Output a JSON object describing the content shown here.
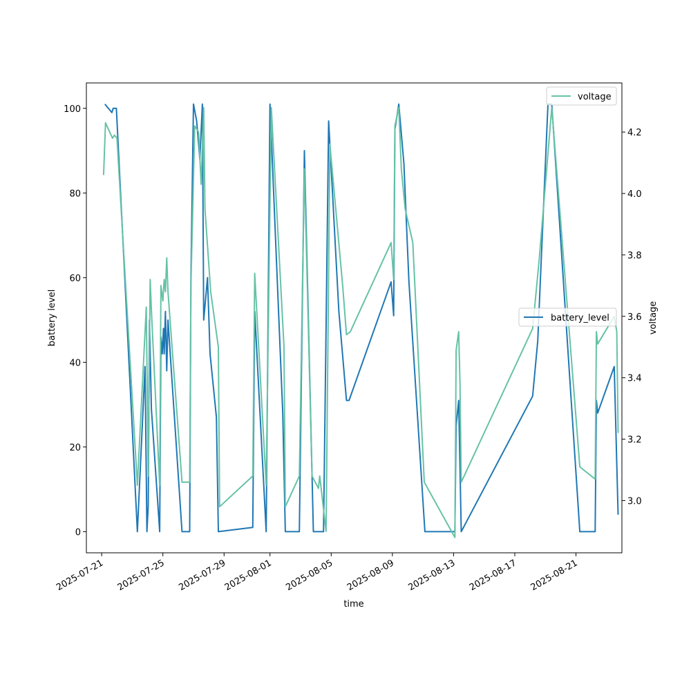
{
  "chart_data": {
    "type": "line",
    "xlabel": "time",
    "ylabel_left": "battery level",
    "ylabel_right": "voltage",
    "xlim": [
      "2025-07-20",
      "2025-08-24"
    ],
    "ylim_left": [
      -5,
      106
    ],
    "ylim_right": [
      2.83,
      4.36
    ],
    "x_ticks": [
      "2025-07-21",
      "2025-07-25",
      "2025-07-29",
      "2025-08-01",
      "2025-08-05",
      "2025-08-09",
      "2025-08-13",
      "2025-08-17",
      "2025-08-21"
    ],
    "y_ticks_left": [
      "0",
      "20",
      "40",
      "60",
      "80",
      "100"
    ],
    "y_ticks_right": [
      "3.0",
      "3.2",
      "3.4",
      "3.6",
      "3.8",
      "4.0",
      "4.2"
    ],
    "legend_left": {
      "label": "battery_level",
      "placement": "center-right"
    },
    "legend_right": {
      "label": "voltage",
      "placement": "top-right"
    },
    "series": [
      {
        "name": "battery_level",
        "axis": "left",
        "color": "#1f77b4",
        "points": [
          [
            "2025-07-21 05:00",
            101
          ],
          [
            "2025-07-21 16:00",
            99
          ],
          [
            "2025-07-21 18:00",
            100
          ],
          [
            "2025-07-21 23:00",
            100
          ],
          [
            "2025-07-23 08:00",
            0
          ],
          [
            "2025-07-23 20:00",
            39
          ],
          [
            "2025-07-23 23:00",
            0
          ],
          [
            "2025-07-24 01:00",
            6
          ],
          [
            "2025-07-24 03:00",
            50
          ],
          [
            "2025-07-24 06:00",
            29
          ],
          [
            "2025-07-24 19:00",
            0
          ],
          [
            "2025-07-24 21:00",
            46
          ],
          [
            "2025-07-24 23:00",
            42
          ],
          [
            "2025-07-25 01:00",
            48
          ],
          [
            "2025-07-25 02:00",
            42
          ],
          [
            "2025-07-25 04:00",
            52
          ],
          [
            "2025-07-25 06:00",
            38
          ],
          [
            "2025-07-25 08:00",
            50
          ],
          [
            "2025-07-26 06:00",
            0
          ],
          [
            "2025-07-26 18:00",
            0
          ],
          [
            "2025-07-26 20:00",
            60
          ],
          [
            "2025-07-27 00:00",
            101
          ],
          [
            "2025-07-27 05:00",
            97
          ],
          [
            "2025-07-27 10:00",
            88
          ],
          [
            "2025-07-27 14:00",
            101
          ],
          [
            "2025-07-27 16:00",
            50
          ],
          [
            "2025-07-27 22:00",
            60
          ],
          [
            "2025-07-28 02:00",
            42
          ],
          [
            "2025-07-28 12:00",
            27
          ],
          [
            "2025-07-28 15:00",
            0
          ],
          [
            "2025-07-30 21:00",
            1
          ],
          [
            "2025-07-31 00:00",
            52
          ],
          [
            "2025-07-31 18:00",
            0
          ],
          [
            "2025-08-01 00:00",
            101
          ],
          [
            "2025-08-01 20:00",
            28
          ],
          [
            "2025-08-02 00:00",
            0
          ],
          [
            "2025-08-02 22:00",
            0
          ],
          [
            "2025-08-03 06:00",
            90
          ],
          [
            "2025-08-03 20:00",
            0
          ],
          [
            "2025-08-04 12:00",
            0
          ],
          [
            "2025-08-04 20:00",
            97
          ],
          [
            "2025-08-05 12:00",
            52
          ],
          [
            "2025-08-06 00:00",
            31
          ],
          [
            "2025-08-06 04:00",
            31
          ],
          [
            "2025-08-08 22:00",
            59
          ],
          [
            "2025-08-09 02:00",
            51
          ],
          [
            "2025-08-09 04:00",
            95
          ],
          [
            "2025-08-09 10:00",
            101
          ],
          [
            "2025-08-09 18:00",
            87
          ],
          [
            "2025-08-10 02:00",
            59
          ],
          [
            "2025-08-11 03:00",
            0
          ],
          [
            "2025-08-13 02:00",
            0
          ],
          [
            "2025-08-13 04:00",
            25
          ],
          [
            "2025-08-13 08:00",
            31
          ],
          [
            "2025-08-13 12:00",
            0
          ],
          [
            "2025-08-18 04:00",
            32
          ],
          [
            "2025-08-18 12:00",
            45
          ],
          [
            "2025-08-19 04:00",
            101
          ],
          [
            "2025-08-19 10:00",
            101
          ],
          [
            "2025-08-21 06:00",
            0
          ],
          [
            "2025-08-22 06:00",
            0
          ],
          [
            "2025-08-22 08:00",
            31
          ],
          [
            "2025-08-22 10:00",
            28
          ],
          [
            "2025-08-23 12:00",
            39
          ],
          [
            "2025-08-23 18:00",
            4
          ]
        ]
      },
      {
        "name": "voltage",
        "axis": "right",
        "color": "#66c2a5",
        "points": [
          [
            "2025-07-21 03:00",
            4.06
          ],
          [
            "2025-07-21 06:00",
            4.23
          ],
          [
            "2025-07-21 17:00",
            4.18
          ],
          [
            "2025-07-21 20:00",
            4.19
          ],
          [
            "2025-07-22 00:00",
            4.18
          ],
          [
            "2025-07-23 08:00",
            3.05
          ],
          [
            "2025-07-23 22:00",
            3.63
          ],
          [
            "2025-07-24 01:00",
            3.08
          ],
          [
            "2025-07-24 04:00",
            3.72
          ],
          [
            "2025-07-24 06:00",
            3.62
          ],
          [
            "2025-07-24 19:00",
            3.05
          ],
          [
            "2025-07-24 21:00",
            3.7
          ],
          [
            "2025-07-25 00:00",
            3.65
          ],
          [
            "2025-07-25 02:00",
            3.72
          ],
          [
            "2025-07-25 04:00",
            3.68
          ],
          [
            "2025-07-25 06:00",
            3.79
          ],
          [
            "2025-07-25 08:00",
            3.68
          ],
          [
            "2025-07-26 06:00",
            3.06
          ],
          [
            "2025-07-26 18:00",
            3.06
          ],
          [
            "2025-07-26 20:00",
            3.7
          ],
          [
            "2025-07-27 02:00",
            4.22
          ],
          [
            "2025-07-27 08:00",
            4.2
          ],
          [
            "2025-07-27 12:00",
            4.03
          ],
          [
            "2025-07-27 16:00",
            4.28
          ],
          [
            "2025-07-27 18:00",
            3.95
          ],
          [
            "2025-07-28 03:00",
            3.68
          ],
          [
            "2025-07-28 15:00",
            3.5
          ],
          [
            "2025-07-28 17:00",
            2.98
          ],
          [
            "2025-07-30 21:00",
            3.08
          ],
          [
            "2025-07-31 00:00",
            3.74
          ],
          [
            "2025-07-31 18:00",
            3.05
          ],
          [
            "2025-08-01 02:00",
            4.28
          ],
          [
            "2025-08-01 22:00",
            3.5
          ],
          [
            "2025-08-02 00:00",
            2.98
          ],
          [
            "2025-08-02 22:00",
            3.08
          ],
          [
            "2025-08-03 06:00",
            4.08
          ],
          [
            "2025-08-03 18:00",
            3.08
          ],
          [
            "2025-08-04 04:00",
            3.04
          ],
          [
            "2025-08-04 06:00",
            3.08
          ],
          [
            "2025-08-04 16:00",
            2.9
          ],
          [
            "2025-08-04 22:00",
            4.16
          ],
          [
            "2025-08-05 18:00",
            3.7
          ],
          [
            "2025-08-06 00:00",
            3.54
          ],
          [
            "2025-08-06 06:00",
            3.55
          ],
          [
            "2025-08-08 22:00",
            3.84
          ],
          [
            "2025-08-09 02:00",
            3.72
          ],
          [
            "2025-08-09 04:00",
            4.22
          ],
          [
            "2025-08-09 10:00",
            4.28
          ],
          [
            "2025-08-09 14:00",
            4.08
          ],
          [
            "2025-08-09 20:00",
            3.95
          ],
          [
            "2025-08-10 08:00",
            3.84
          ],
          [
            "2025-08-11 02:00",
            3.06
          ],
          [
            "2025-08-13 02:00",
            2.88
          ],
          [
            "2025-08-13 04:00",
            3.49
          ],
          [
            "2025-08-13 08:00",
            3.55
          ],
          [
            "2025-08-13 10:00",
            3.38
          ],
          [
            "2025-08-13 12:00",
            3.06
          ],
          [
            "2025-08-18 04:00",
            3.56
          ],
          [
            "2025-08-18 14:00",
            3.78
          ],
          [
            "2025-08-19 10:00",
            4.28
          ],
          [
            "2025-08-21 06:00",
            3.11
          ],
          [
            "2025-08-22 06:00",
            3.07
          ],
          [
            "2025-08-22 08:00",
            3.55
          ],
          [
            "2025-08-22 10:00",
            3.51
          ],
          [
            "2025-08-23 12:00",
            3.6
          ],
          [
            "2025-08-23 16:00",
            3.55
          ],
          [
            "2025-08-23 18:00",
            3.22
          ]
        ]
      }
    ]
  }
}
